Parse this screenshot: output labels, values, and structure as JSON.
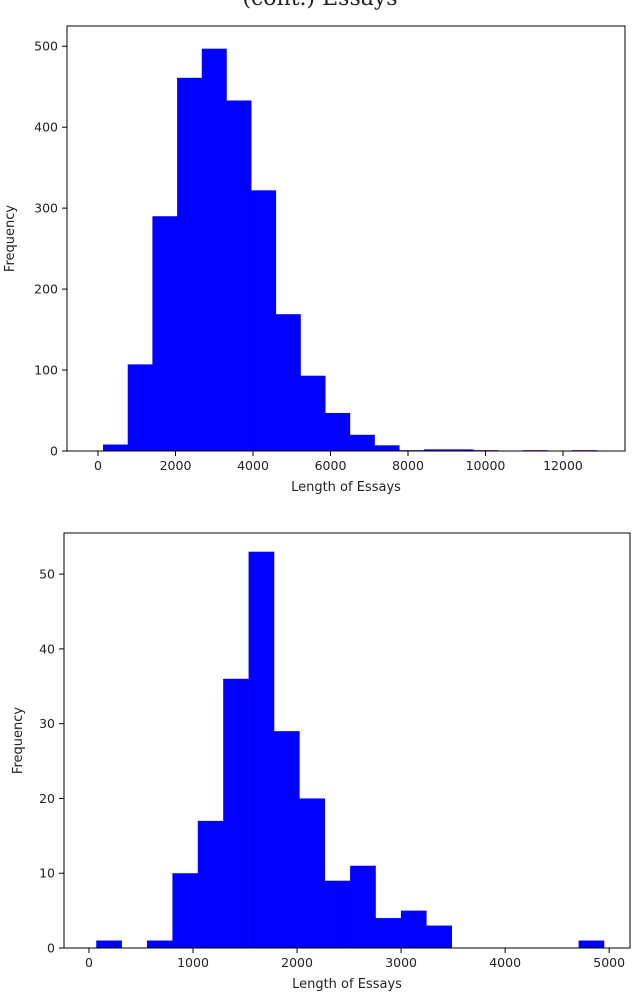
{
  "header": {
    "caption": "(cont.) Essays"
  },
  "chart_data": [
    {
      "type": "bar",
      "xlabel": "Length of Essays",
      "ylabel": "Frequency",
      "xlim": [
        -800,
        13600
      ],
      "ylim": [
        0,
        525
      ],
      "xticks": [
        0,
        2000,
        4000,
        6000,
        8000,
        10000,
        12000
      ],
      "yticks": [
        0,
        100,
        200,
        300,
        400,
        500
      ],
      "bar_color": "#0000ff",
      "bins": [
        {
          "x0": 130,
          "x1": 767,
          "count": 8
        },
        {
          "x0": 767,
          "x1": 1404,
          "count": 107
        },
        {
          "x0": 1404,
          "x1": 2041,
          "count": 290
        },
        {
          "x0": 2041,
          "x1": 2678,
          "count": 461
        },
        {
          "x0": 2678,
          "x1": 3315,
          "count": 497
        },
        {
          "x0": 3315,
          "x1": 3952,
          "count": 433
        },
        {
          "x0": 3952,
          "x1": 4589,
          "count": 322
        },
        {
          "x0": 4589,
          "x1": 5226,
          "count": 169
        },
        {
          "x0": 5226,
          "x1": 5863,
          "count": 93
        },
        {
          "x0": 5863,
          "x1": 6500,
          "count": 47
        },
        {
          "x0": 6500,
          "x1": 7137,
          "count": 20
        },
        {
          "x0": 7137,
          "x1": 7774,
          "count": 7
        },
        {
          "x0": 7774,
          "x1": 8411,
          "count": 1
        },
        {
          "x0": 8411,
          "x1": 9048,
          "count": 2
        },
        {
          "x0": 9048,
          "x1": 9685,
          "count": 2
        },
        {
          "x0": 9685,
          "x1": 10322,
          "count": 1
        },
        {
          "x0": 10322,
          "x1": 10959,
          "count": 0
        },
        {
          "x0": 10959,
          "x1": 11596,
          "count": 1
        },
        {
          "x0": 11596,
          "x1": 12233,
          "count": 0
        },
        {
          "x0": 12233,
          "x1": 12870,
          "count": 1
        }
      ]
    },
    {
      "type": "bar",
      "xlabel": "Length of Essays",
      "ylabel": "Frequency",
      "xlim": [
        -240,
        5200
      ],
      "ylim": [
        0,
        55.5
      ],
      "xticks": [
        0,
        1000,
        2000,
        3000,
        4000,
        5000
      ],
      "yticks": [
        0,
        10,
        20,
        30,
        40,
        50
      ],
      "bar_color": "#0000ff",
      "bins": [
        {
          "x0": 70,
          "x1": 314,
          "count": 1
        },
        {
          "x0": 314,
          "x1": 558,
          "count": 0
        },
        {
          "x0": 558,
          "x1": 802,
          "count": 1
        },
        {
          "x0": 802,
          "x1": 1046,
          "count": 10
        },
        {
          "x0": 1046,
          "x1": 1290,
          "count": 17
        },
        {
          "x0": 1290,
          "x1": 1534,
          "count": 36
        },
        {
          "x0": 1534,
          "x1": 1778,
          "count": 53
        },
        {
          "x0": 1778,
          "x1": 2022,
          "count": 29
        },
        {
          "x0": 2022,
          "x1": 2266,
          "count": 20
        },
        {
          "x0": 2266,
          "x1": 2510,
          "count": 9
        },
        {
          "x0": 2510,
          "x1": 2754,
          "count": 11
        },
        {
          "x0": 2754,
          "x1": 2998,
          "count": 4
        },
        {
          "x0": 2998,
          "x1": 3242,
          "count": 5
        },
        {
          "x0": 3242,
          "x1": 3486,
          "count": 3
        },
        {
          "x0": 3486,
          "x1": 3730,
          "count": 0
        },
        {
          "x0": 3730,
          "x1": 3974,
          "count": 0
        },
        {
          "x0": 3974,
          "x1": 4218,
          "count": 0
        },
        {
          "x0": 4218,
          "x1": 4462,
          "count": 0
        },
        {
          "x0": 4462,
          "x1": 4706,
          "count": 0
        },
        {
          "x0": 4706,
          "x1": 4950,
          "count": 1
        }
      ]
    }
  ]
}
